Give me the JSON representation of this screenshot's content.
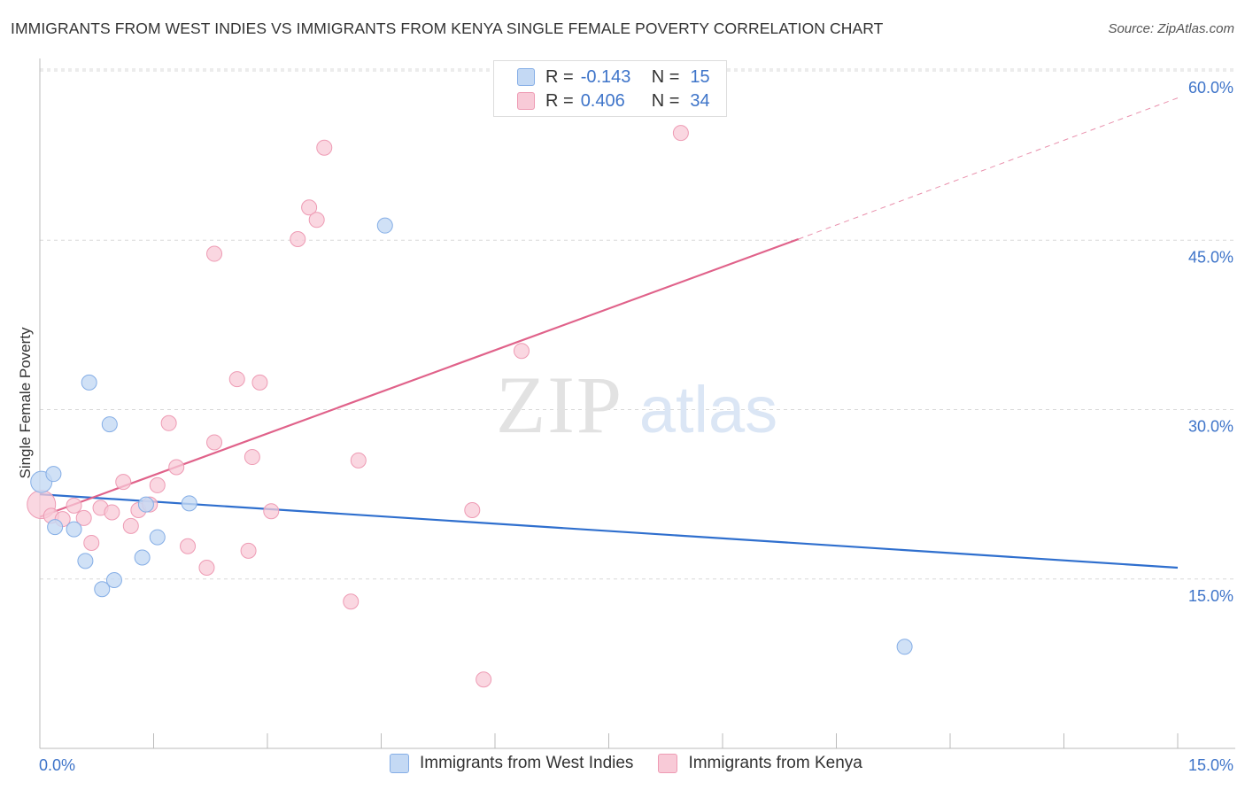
{
  "title": "IMMIGRANTS FROM WEST INDIES VS IMMIGRANTS FROM KENYA SINGLE FEMALE POVERTY CORRELATION CHART",
  "source": "Source: ZipAtlas.com",
  "watermark": {
    "zip": "ZIP",
    "atlas": "atlas"
  },
  "colors": {
    "blue_fill": "#c4d9f4",
    "blue_stroke": "#85aee6",
    "blue_line": "#2f6fce",
    "pink_fill": "#f8cad7",
    "pink_stroke": "#ee9bb4",
    "pink_line": "#e0628a",
    "tick_text": "#3e74c9",
    "grid": "#d8d8d8"
  },
  "legend": {
    "rows": [
      {
        "r_label": "R =",
        "r_value": "-0.143",
        "n_label": "N =",
        "n_value": "15"
      },
      {
        "r_label": "R =",
        "r_value": "0.406",
        "n_label": "N =",
        "n_value": "34"
      }
    ]
  },
  "chart_data": {
    "type": "scatter",
    "title": "IMMIGRANTS FROM WEST INDIES VS IMMIGRANTS FROM KENYA SINGLE FEMALE POVERTY CORRELATION CHART",
    "xlabel": "",
    "ylabel": "Single Female Poverty",
    "xlim": [
      0,
      15
    ],
    "ylim": [
      0,
      60
    ],
    "x_tick_labels": [
      "0.0%",
      "15.0%"
    ],
    "y_ticks": [
      15,
      30,
      45,
      60
    ],
    "y_tick_labels": [
      "15.0%",
      "30.0%",
      "45.0%",
      "60.0%"
    ],
    "series": [
      {
        "name": "Immigrants from West Indies",
        "points": [
          [
            0.02,
            23.6
          ],
          [
            0.18,
            24.3
          ],
          [
            0.2,
            19.6
          ],
          [
            0.45,
            19.4
          ],
          [
            0.6,
            16.6
          ],
          [
            0.65,
            32.4
          ],
          [
            0.82,
            14.1
          ],
          [
            0.92,
            28.7
          ],
          [
            0.98,
            14.9
          ],
          [
            1.35,
            16.9
          ],
          [
            1.4,
            21.6
          ],
          [
            1.55,
            18.7
          ],
          [
            1.97,
            21.7
          ],
          [
            4.55,
            46.3
          ],
          [
            11.4,
            9.0
          ]
        ],
        "trend": {
          "x": [
            0,
            15
          ],
          "y": [
            22.5,
            16.0
          ]
        }
      },
      {
        "name": "Immigrants from Kenya",
        "points": [
          [
            0.02,
            21.6
          ],
          [
            0.15,
            20.6
          ],
          [
            0.3,
            20.3
          ],
          [
            0.45,
            21.5
          ],
          [
            0.58,
            20.4
          ],
          [
            0.68,
            18.2
          ],
          [
            0.8,
            21.3
          ],
          [
            0.95,
            20.9
          ],
          [
            1.1,
            23.6
          ],
          [
            1.2,
            19.7
          ],
          [
            1.3,
            21.1
          ],
          [
            1.45,
            21.6
          ],
          [
            1.55,
            23.3
          ],
          [
            1.7,
            28.8
          ],
          [
            1.8,
            24.9
          ],
          [
            1.95,
            17.9
          ],
          [
            2.2,
            16.0
          ],
          [
            2.3,
            27.1
          ],
          [
            2.3,
            43.8
          ],
          [
            2.6,
            32.7
          ],
          [
            2.75,
            17.5
          ],
          [
            2.8,
            25.8
          ],
          [
            2.9,
            32.4
          ],
          [
            3.05,
            21.0
          ],
          [
            3.4,
            45.1
          ],
          [
            3.55,
            47.9
          ],
          [
            3.65,
            46.8
          ],
          [
            3.75,
            53.2
          ],
          [
            4.1,
            13.0
          ],
          [
            4.2,
            25.5
          ],
          [
            5.7,
            21.1
          ],
          [
            5.85,
            6.1
          ],
          [
            6.35,
            35.2
          ],
          [
            8.45,
            54.5
          ]
        ],
        "trend": {
          "x": [
            0,
            10
          ],
          "y": [
            20.5,
            45.1
          ]
        },
        "trend_dashed": {
          "x": [
            10,
            15
          ],
          "y": [
            45.1,
            57.6
          ]
        }
      }
    ]
  }
}
